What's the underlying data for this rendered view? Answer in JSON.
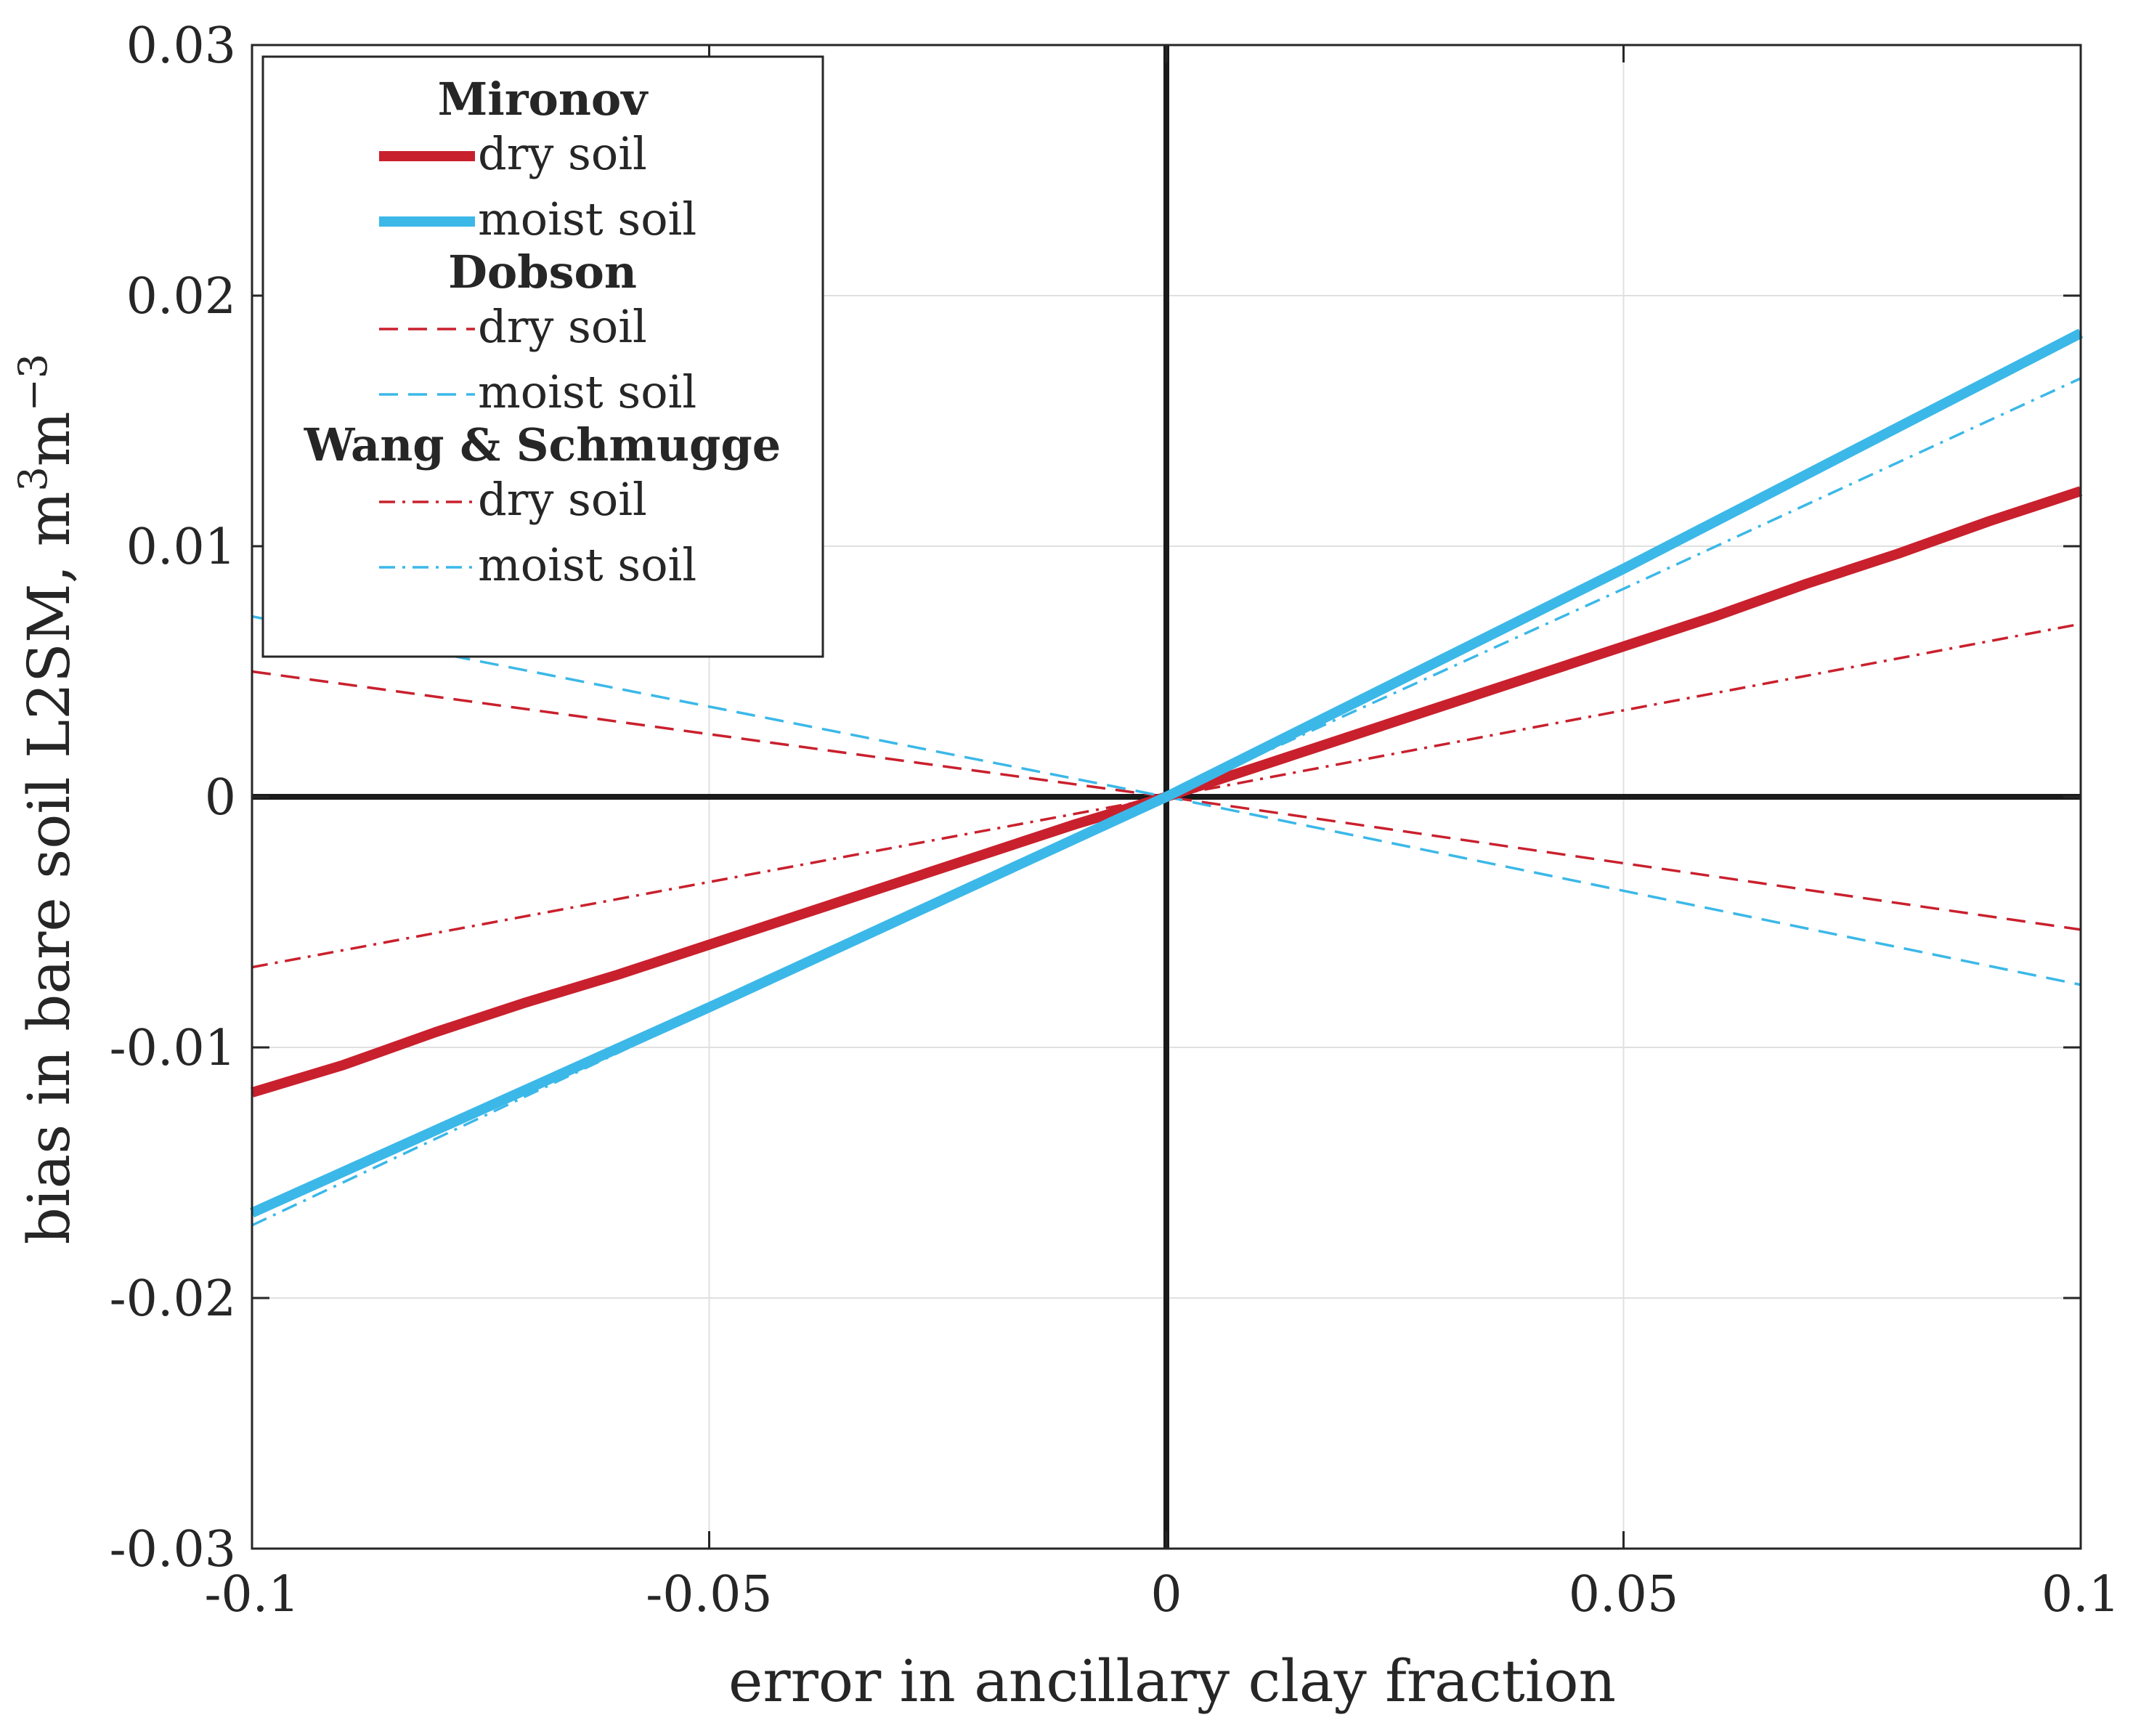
{
  "chart_data": {
    "type": "line",
    "xlabel": "error in ancillary clay fraction",
    "ylabel": "bias in bare soil L2SM, m",
    "ylabel_sup1": "3",
    "ylabel_mid": "m",
    "ylabel_sup2": "−3",
    "xlim": [
      -0.1,
      0.1
    ],
    "ylim": [
      -0.03,
      0.03
    ],
    "xticks": [
      -0.1,
      -0.05,
      0,
      0.05,
      0.1
    ],
    "xtick_labels": [
      "-0.1",
      "-0.05",
      "0",
      "0.05",
      "0.1"
    ],
    "yticks": [
      -0.03,
      -0.02,
      -0.01,
      0,
      0.01,
      0.02,
      0.03
    ],
    "ytick_labels": [
      "-0.03",
      "-0.02",
      "-0.01",
      "0",
      "0.01",
      "0.02",
      "0.03"
    ],
    "grid": true,
    "reference_lines": {
      "x0": 0,
      "y0": 0,
      "color": "#1a1a1a"
    },
    "legend_position": "top-left",
    "legend_groups": [
      {
        "title": "Mironov",
        "entries": [
          "dry soil",
          "moist soil"
        ]
      },
      {
        "title": "Dobson",
        "entries": [
          "dry soil",
          "moist soil"
        ]
      },
      {
        "title": "Wang & Schmugge",
        "entries": [
          "dry soil",
          "moist soil"
        ]
      }
    ],
    "series": [
      {
        "name": "Mironov dry soil",
        "group": "Mironov",
        "style": "solid",
        "color": "#c9202d",
        "x": [
          -0.1,
          -0.09,
          -0.08,
          -0.07,
          -0.06,
          -0.05,
          -0.04,
          -0.03,
          -0.02,
          -0.01,
          0,
          0.01,
          0.02,
          0.03,
          0.04,
          0.05,
          0.06,
          0.07,
          0.08,
          0.09,
          0.1
        ],
        "y": [
          -0.0118,
          -0.0107,
          -0.0094,
          -0.0082,
          -0.0071,
          -0.0059,
          -0.0047,
          -0.0035,
          -0.0023,
          -0.0011,
          0,
          0.0012,
          0.0024,
          0.0036,
          0.0048,
          0.006,
          0.0072,
          0.0085,
          0.0097,
          0.011,
          0.0122
        ]
      },
      {
        "name": "Mironov moist soil",
        "group": "Mironov",
        "style": "solid",
        "color": "#3bb8e8",
        "x": [
          -0.1,
          -0.05,
          0,
          0.05,
          0.1
        ],
        "y": [
          -0.0166,
          -0.0084,
          0,
          0.0091,
          0.0185
        ]
      },
      {
        "name": "Dobson dry soil",
        "group": "Dobson",
        "style": "dashed",
        "color": "#c9202d",
        "x": [
          -0.1,
          0,
          0.1
        ],
        "y": [
          0.005,
          0,
          -0.0053
        ]
      },
      {
        "name": "Dobson moist soil",
        "group": "Dobson",
        "style": "dashed",
        "color": "#3bb8e8",
        "x": [
          -0.1,
          0,
          0.1
        ],
        "y": [
          0.0072,
          0,
          -0.0075
        ]
      },
      {
        "name": "Wang & Schmugge dry soil",
        "group": "Wang & Schmugge",
        "style": "dashdot",
        "color": "#c9202d",
        "x": [
          -0.1,
          0,
          0.1
        ],
        "y": [
          -0.0068,
          0,
          0.0069
        ]
      },
      {
        "name": "Wang & Schmugge moist soil",
        "group": "Wang & Schmugge",
        "style": "dashdot",
        "color": "#3bb8e8",
        "x": [
          -0.1,
          -0.05,
          0,
          0.05,
          0.1
        ],
        "y": [
          -0.0171,
          -0.0085,
          0,
          0.0083,
          0.0167
        ]
      }
    ]
  }
}
